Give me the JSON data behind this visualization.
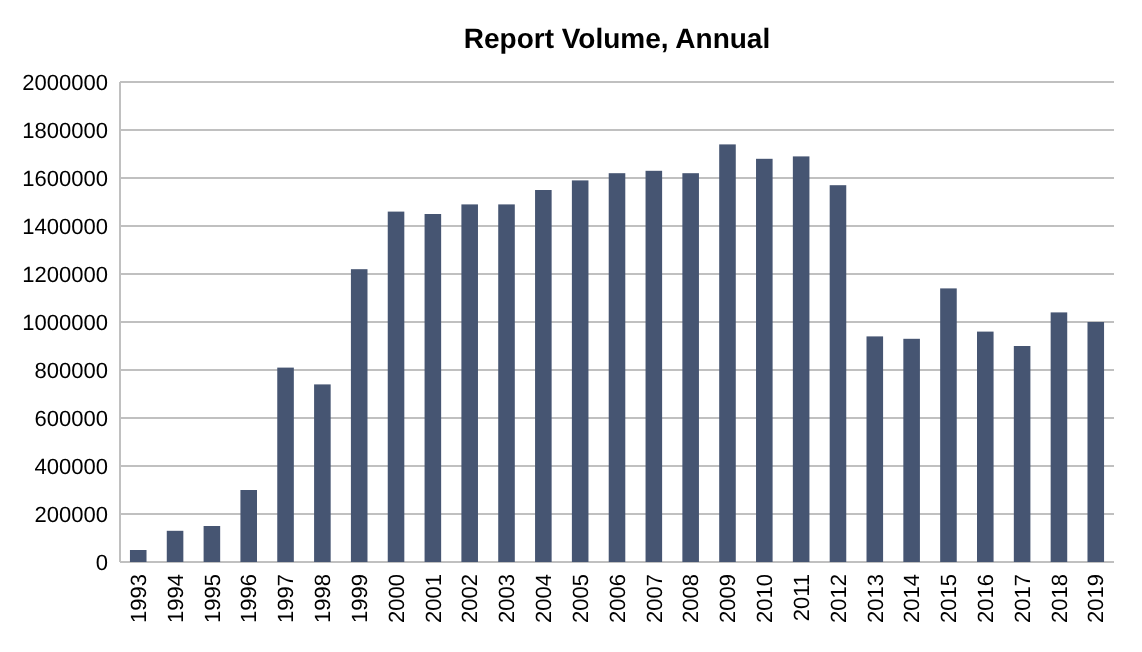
{
  "chart_data": {
    "type": "bar",
    "title": "Report Volume, Annual",
    "categories": [
      "1993",
      "1994",
      "1995",
      "1996",
      "1997",
      "1998",
      "1999",
      "2000",
      "2001",
      "2002",
      "2003",
      "2004",
      "2005",
      "2006",
      "2007",
      "2008",
      "2009",
      "2010",
      "2011",
      "2012",
      "2013",
      "2014",
      "2015",
      "2016",
      "2017",
      "2018",
      "2019"
    ],
    "values": [
      50000,
      130000,
      150000,
      300000,
      810000,
      740000,
      1220000,
      1460000,
      1450000,
      1490000,
      1490000,
      1550000,
      1590000,
      1620000,
      1630000,
      1620000,
      1740000,
      1680000,
      1690000,
      1570000,
      940000,
      930000,
      1140000,
      960000,
      900000,
      1040000,
      1000000
    ],
    "color": "#465572",
    "ylim": [
      0,
      2000000
    ],
    "yticks": [
      0,
      200000,
      400000,
      600000,
      800000,
      1000000,
      1200000,
      1400000,
      1600000,
      1800000,
      2000000
    ],
    "grid": "y"
  }
}
